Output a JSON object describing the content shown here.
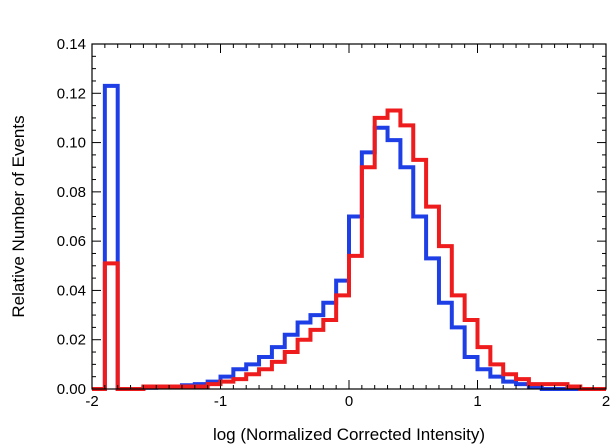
{
  "chart_data": {
    "type": "area",
    "title": "",
    "xlabel": "log (Normalized Corrected Intensity)",
    "ylabel": "Relative Number of Events",
    "xlim": [
      -2,
      2
    ],
    "ylim": [
      0,
      0.14
    ],
    "xticks": [
      -2,
      -1,
      0,
      1,
      2
    ],
    "yticks": [
      0.0,
      0.02,
      0.04,
      0.06,
      0.08,
      0.1,
      0.12,
      0.14
    ],
    "xtick_labels": [
      "-2",
      "-1",
      "0",
      "1",
      "2"
    ],
    "ytick_labels": [
      "0.00",
      "0.02",
      "0.04",
      "0.06",
      "0.08",
      "0.10",
      "0.12",
      "0.14"
    ],
    "grid": false,
    "bin_width": 0.1,
    "bin_edges_start": -1.9,
    "series": [
      {
        "color": "#1f3fe6",
        "values": [
          0.123,
          0.0,
          0.0,
          0.0005,
          0.001,
          0.001,
          0.0015,
          0.002,
          0.003,
          0.005,
          0.008,
          0.01,
          0.013,
          0.017,
          0.022,
          0.027,
          0.03,
          0.035,
          0.044,
          0.07,
          0.096,
          0.106,
          0.101,
          0.09,
          0.07,
          0.053,
          0.035,
          0.025,
          0.013,
          0.008,
          0.005,
          0.003,
          0.002,
          0.001,
          0.0,
          0.0,
          0.0,
          0.0
        ]
      },
      {
        "color": "#ee1c1c",
        "values": [
          0.051,
          0.0,
          0.0,
          0.001,
          0.001,
          0.001,
          0.001,
          0.001,
          0.002,
          0.003,
          0.004,
          0.006,
          0.008,
          0.011,
          0.015,
          0.02,
          0.024,
          0.028,
          0.038,
          0.054,
          0.09,
          0.11,
          0.113,
          0.107,
          0.093,
          0.074,
          0.058,
          0.038,
          0.028,
          0.017,
          0.01,
          0.006,
          0.004,
          0.002,
          0.002,
          0.002,
          0.001,
          0.0
        ]
      }
    ]
  }
}
